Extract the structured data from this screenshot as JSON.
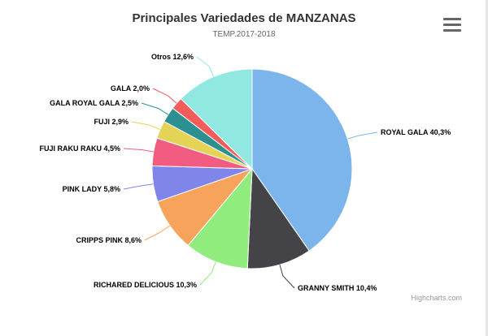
{
  "chart_data": {
    "type": "pie",
    "title": "Principales Variedades de MANZANAS",
    "subtitle": "TEMP.2017-2018",
    "slices": [
      {
        "name": "ROYAL GALA",
        "value": 40.3,
        "label": "ROYAL GALA 40,3%",
        "color": "#7cb5ec"
      },
      {
        "name": "GRANNY SMITH",
        "value": 10.4,
        "label": "GRANNY SMITH 10,4%",
        "color": "#434348"
      },
      {
        "name": "RICHARED DELICIOUS",
        "value": 10.3,
        "label": "RICHARED DELICIOUS 10,3%",
        "color": "#90ed7d"
      },
      {
        "name": "CRIPPS PINK",
        "value": 8.6,
        "label": "CRIPPS PINK 8,6%",
        "color": "#f7a35c"
      },
      {
        "name": "PINK LADY",
        "value": 5.8,
        "label": "PINK LADY 5,8%",
        "color": "#8085e9"
      },
      {
        "name": "FUJI RAKU RAKU",
        "value": 4.5,
        "label": "FUJI RAKU RAKU 4,5%",
        "color": "#f15c80"
      },
      {
        "name": "FUJI",
        "value": 2.9,
        "label": "FUJI 2,9%",
        "color": "#e4d354"
      },
      {
        "name": "GALA ROYAL GALA",
        "value": 2.5,
        "label": "GALA ROYAL GALA 2,5%",
        "color": "#2b908f"
      },
      {
        "name": "GALA",
        "value": 2.0,
        "label": "GALA 2,0%",
        "color": "#f45b5b"
      },
      {
        "name": "Otros",
        "value": 12.6,
        "label": "Otros 12,6%",
        "color": "#91e8e1"
      }
    ]
  },
  "menu": {
    "icon": "hamburger-menu-icon"
  },
  "credits": "Highcharts.com"
}
